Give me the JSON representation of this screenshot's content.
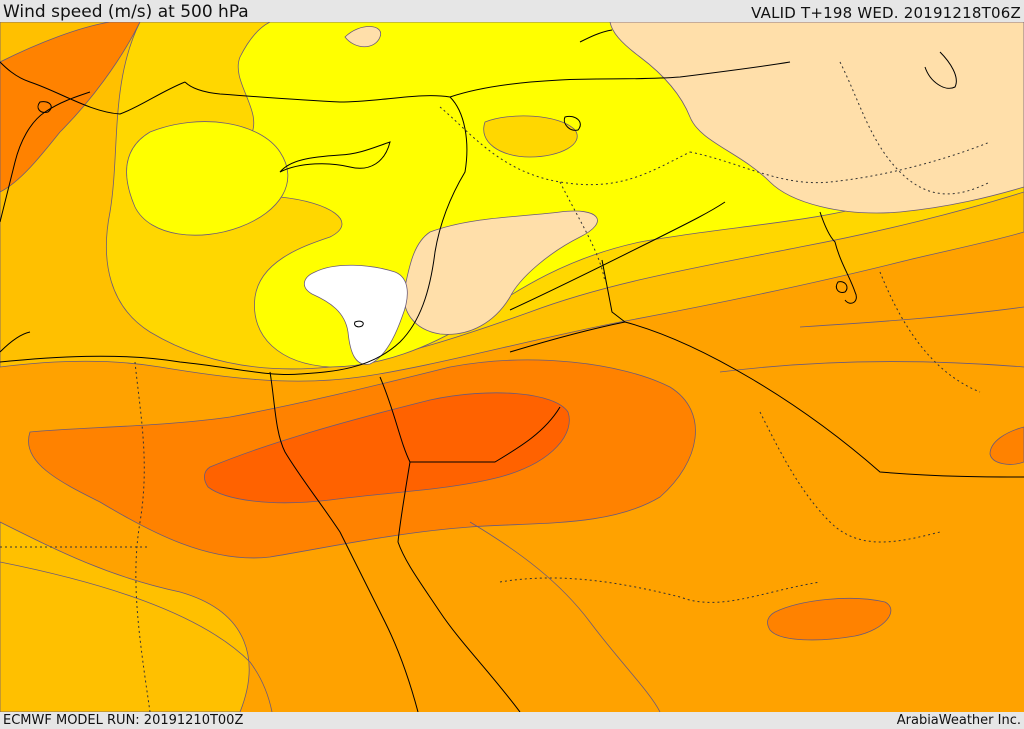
{
  "header": {
    "title": "Wind speed (m/s) at 500 hPa",
    "valid_time": "VALID T+198 WED. 20191218T06Z"
  },
  "footer": {
    "model_run": "ECMWF MODEL RUN: 20191210T00Z",
    "credit": "ArabiaWeather Inc."
  },
  "colors": {
    "band_white": "#ffffff",
    "band_1": "#ffdfaa",
    "band_2": "#ffff00",
    "band_3": "#ffd700",
    "band_4": "#ffc000",
    "band_5": "#ffa200",
    "band_6": "#ff8200",
    "band_7": "#ff6200",
    "contour": "#6b5a7a",
    "coastline": "#000000"
  }
}
